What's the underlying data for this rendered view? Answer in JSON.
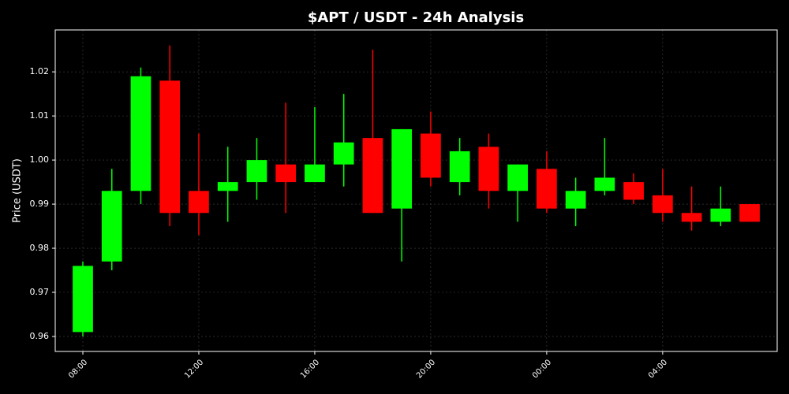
{
  "chart_data": {
    "type": "candlestick",
    "title": "$APT / USDT - 24h Analysis",
    "y_label": "Price (USDT)",
    "categories": [
      "08:00",
      null,
      null,
      null,
      "12:00",
      null,
      null,
      null,
      "16:00",
      null,
      null,
      null,
      "20:00",
      null,
      null,
      null,
      "00:00",
      null,
      null,
      null,
      "04:00",
      null,
      null,
      null
    ],
    "open": [
      0.961,
      0.977,
      0.993,
      1.018,
      0.993,
      0.993,
      0.995,
      0.999,
      0.995,
      0.999,
      1.005,
      0.989,
      1.006,
      0.995,
      1.003,
      0.993,
      0.998,
      0.989,
      0.993,
      0.995,
      0.992,
      0.988,
      0.986,
      0.99
    ],
    "high": [
      0.977,
      0.998,
      1.021,
      1.026,
      1.006,
      1.003,
      1.005,
      1.013,
      1.012,
      1.015,
      1.025,
      1.007,
      1.011,
      1.005,
      1.006,
      0.999,
      1.002,
      0.996,
      1.005,
      0.997,
      0.998,
      0.994,
      0.994,
      0.99
    ],
    "low": [
      0.96,
      0.975,
      0.99,
      0.985,
      0.983,
      0.986,
      0.991,
      0.988,
      0.995,
      0.994,
      0.988,
      0.977,
      0.994,
      0.992,
      0.989,
      0.986,
      0.988,
      0.985,
      0.992,
      0.99,
      0.986,
      0.984,
      0.985,
      0.986
    ],
    "close": [
      0.976,
      0.993,
      1.019,
      0.988,
      0.988,
      0.995,
      1.0,
      0.995,
      0.999,
      1.004,
      0.988,
      1.007,
      0.996,
      1.002,
      0.993,
      0.999,
      0.989,
      0.993,
      0.996,
      0.991,
      0.988,
      0.986,
      0.989,
      0.986
    ],
    "up_color": "#00ff00",
    "down_color": "#ff0000",
    "ylim": [
      0.9566,
      1.0295
    ],
    "yticks": [
      0.96,
      0.97,
      0.98,
      0.99,
      {
        "value": 1,
        "label": "1.00"
      },
      1.01,
      1.02
    ],
    "grid": true
  }
}
